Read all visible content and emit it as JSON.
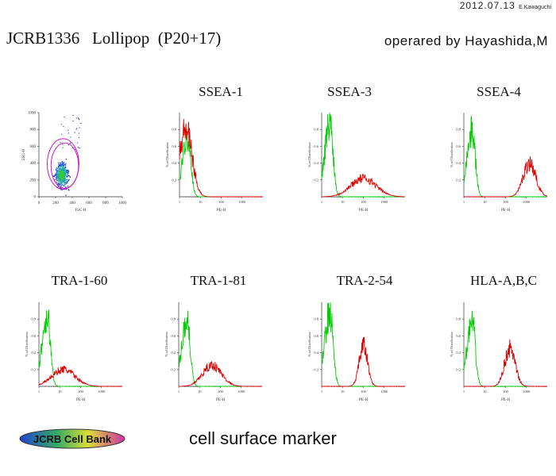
{
  "header": {
    "date": "2012.07.13",
    "author": "E.Kawaguchi",
    "title": "JCRB1336   Lollipop  (P20+17)",
    "operator": "operared by Hayashida,M"
  },
  "logo_text": "JCRB Cell Bank",
  "footer": "cell surface marker",
  "colors": {
    "control": "#00cc00",
    "marker": "#dd0000",
    "gate": "#cc00cc"
  },
  "chart_data": [
    {
      "type": "scatter",
      "title": "",
      "xlabel": "FSC-H",
      "ylabel": "SSC-H",
      "xlim": [
        0,
        1000
      ],
      "ylim": [
        0,
        1000
      ],
      "xticks": [
        "0",
        "200",
        "400",
        "600",
        "800",
        "1000"
      ],
      "yticks": [
        "0",
        "200",
        "400",
        "600",
        "800",
        "1000"
      ],
      "gates": [
        {
          "shape": "ellipse",
          "cx": 290,
          "cy": 390,
          "rx": 190,
          "ry": 300
        },
        {
          "shape": "ellipse",
          "cx": 310,
          "cy": 370,
          "rx": 165,
          "ry": 270
        }
      ],
      "cluster": {
        "center": [
          270,
          260
        ],
        "spread": [
          90,
          170
        ]
      }
    },
    {
      "type": "line",
      "title": "SSEA-1",
      "xlabel": "PE-H",
      "ylabel": "% of Distribution",
      "xscale": "log",
      "xlim": [
        1,
        10000
      ],
      "ylim": [
        0,
        1
      ],
      "xticks": [
        "1",
        "10",
        "100",
        "1000"
      ],
      "yticks": [
        "0.8",
        "0.6",
        "0.4",
        "0.2"
      ],
      "series": [
        {
          "role": "control",
          "peak": 2.5,
          "width": 0.25,
          "height": 0.72
        },
        {
          "role": "marker",
          "peak": 2.0,
          "width": 0.3,
          "height": 0.8
        }
      ]
    },
    {
      "type": "line",
      "title": "SSEA-3",
      "xlabel": "PE-H",
      "ylabel": "% of Distribution",
      "xscale": "log",
      "xlim": [
        1,
        10000
      ],
      "ylim": [
        0,
        1
      ],
      "xticks": [
        "1",
        "10",
        "100",
        "1000"
      ],
      "yticks": [
        "0.8",
        "0.6",
        "0.4",
        "0.2"
      ],
      "series": [
        {
          "role": "control",
          "peak": 2.5,
          "width": 0.25,
          "height": 0.88
        },
        {
          "role": "marker",
          "peak": 100,
          "width": 0.6,
          "height": 0.22
        }
      ]
    },
    {
      "type": "line",
      "title": "SSEA-4",
      "xlabel": "PE-H",
      "ylabel": "% of Distribution",
      "xscale": "log",
      "xlim": [
        1,
        10000
      ],
      "ylim": [
        0,
        1
      ],
      "xticks": [
        "1",
        "10",
        "100",
        "1000"
      ],
      "yticks": [
        "0.8",
        "0.6",
        "0.4",
        "0.2"
      ],
      "series": [
        {
          "role": "control",
          "peak": 2.5,
          "width": 0.25,
          "height": 0.78
        },
        {
          "role": "marker",
          "peak": 1400,
          "width": 0.3,
          "height": 0.4
        }
      ]
    },
    {
      "type": "line",
      "title": "TRA-1-60",
      "xlabel": "PE-H",
      "ylabel": "% of Distribution",
      "xscale": "log",
      "xlim": [
        1,
        10000
      ],
      "ylim": [
        0,
        1
      ],
      "xticks": [
        "1",
        "10",
        "100",
        "1000"
      ],
      "yticks": [
        "0.8",
        "0.6",
        "0.4",
        "0.2"
      ],
      "series": [
        {
          "role": "control",
          "peak": 2.5,
          "width": 0.25,
          "height": 0.85
        },
        {
          "role": "marker",
          "peak": 15,
          "width": 0.55,
          "height": 0.2
        }
      ]
    },
    {
      "type": "line",
      "title": "TRA-1-81",
      "xlabel": "PE-H",
      "ylabel": "% of Distribution",
      "xscale": "log",
      "xlim": [
        1,
        10000
      ],
      "ylim": [
        0,
        1
      ],
      "xticks": [
        "1",
        "10",
        "100",
        "1000"
      ],
      "yticks": [
        "0.8",
        "0.6",
        "0.4",
        "0.2"
      ],
      "series": [
        {
          "role": "control",
          "peak": 2.5,
          "width": 0.25,
          "height": 0.8
        },
        {
          "role": "marker",
          "peak": 40,
          "width": 0.45,
          "height": 0.25
        }
      ]
    },
    {
      "type": "line",
      "title": "TRA-2-54",
      "xlabel": "PE-H",
      "ylabel": "% of Distribution",
      "xscale": "log",
      "xlim": [
        1,
        10000
      ],
      "ylim": [
        0,
        1
      ],
      "xticks": [
        "1",
        "10",
        "100",
        "1000"
      ],
      "yticks": [
        "0.8",
        "0.6",
        "0.4",
        "0.2"
      ],
      "series": [
        {
          "role": "control",
          "peak": 2.5,
          "width": 0.25,
          "height": 0.88
        },
        {
          "role": "marker",
          "peak": 100,
          "width": 0.2,
          "height": 0.48
        }
      ]
    },
    {
      "type": "line",
      "title": "HLA-A,B,C",
      "xlabel": "PE-H",
      "ylabel": "% of Distribution",
      "xscale": "log",
      "xlim": [
        1,
        10000
      ],
      "ylim": [
        0,
        1
      ],
      "xticks": [
        "1",
        "10",
        "100",
        "1000"
      ],
      "yticks": [
        "0.8",
        "0.6",
        "0.4",
        "0.2"
      ],
      "series": [
        {
          "role": "control",
          "peak": 2.5,
          "width": 0.25,
          "height": 0.75
        },
        {
          "role": "marker",
          "peak": 160,
          "width": 0.25,
          "height": 0.45
        }
      ]
    }
  ]
}
